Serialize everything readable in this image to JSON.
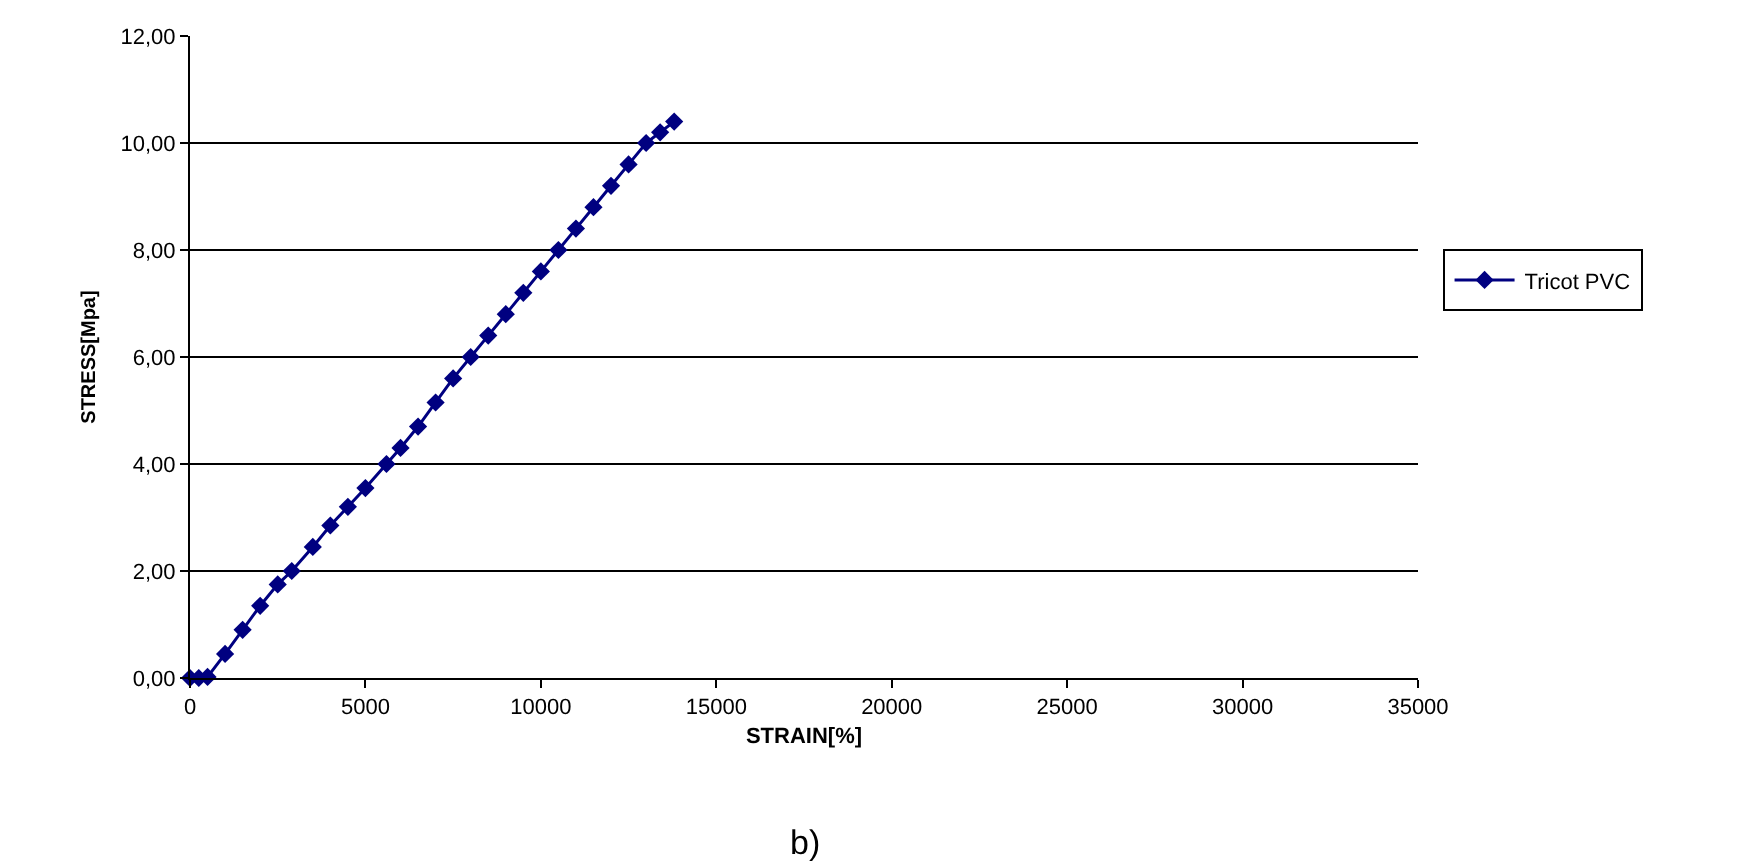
{
  "chart_data": {
    "type": "line",
    "xlabel": "STRAIN[%]",
    "ylabel": "STRESS[Mpa]",
    "annotations": [
      "b)"
    ],
    "xlim": [
      0,
      35000
    ],
    "xticks": [
      0,
      5000,
      10000,
      15000,
      20000,
      25000,
      30000,
      35000
    ],
    "ylim": [
      0,
      12
    ],
    "yticks": [
      {
        "value": 0,
        "label": "0,00"
      },
      {
        "value": 2,
        "label": "2,00"
      },
      {
        "value": 4,
        "label": "4,00"
      },
      {
        "value": 6,
        "label": "6,00"
      },
      {
        "value": 8,
        "label": "8,00"
      },
      {
        "value": 10,
        "label": "10,00"
      },
      {
        "value": 12,
        "label": "12,00"
      }
    ],
    "grid": "y",
    "legend": "right",
    "marker": "diamond",
    "line_style": "solid",
    "series": [
      {
        "name": "Tricot PVC",
        "color": "#000080",
        "x": [
          0,
          250,
          500,
          1000,
          1500,
          2000,
          2500,
          2900,
          3500,
          4000,
          4500,
          5000,
          5600,
          6000,
          6500,
          7000,
          7500,
          8000,
          8500,
          9000,
          9500,
          10000,
          10500,
          11000,
          11500,
          12000,
          12500,
          13000,
          13400,
          13800
        ],
        "values": [
          0,
          0,
          0.02,
          0.45,
          0.9,
          1.35,
          1.75,
          2.0,
          2.45,
          2.85,
          3.2,
          3.55,
          4.0,
          4.3,
          4.7,
          5.15,
          5.6,
          6.0,
          6.4,
          6.8,
          7.2,
          7.6,
          8.0,
          8.4,
          8.8,
          9.2,
          9.6,
          10.0,
          10.2,
          10.4
        ]
      }
    ]
  }
}
